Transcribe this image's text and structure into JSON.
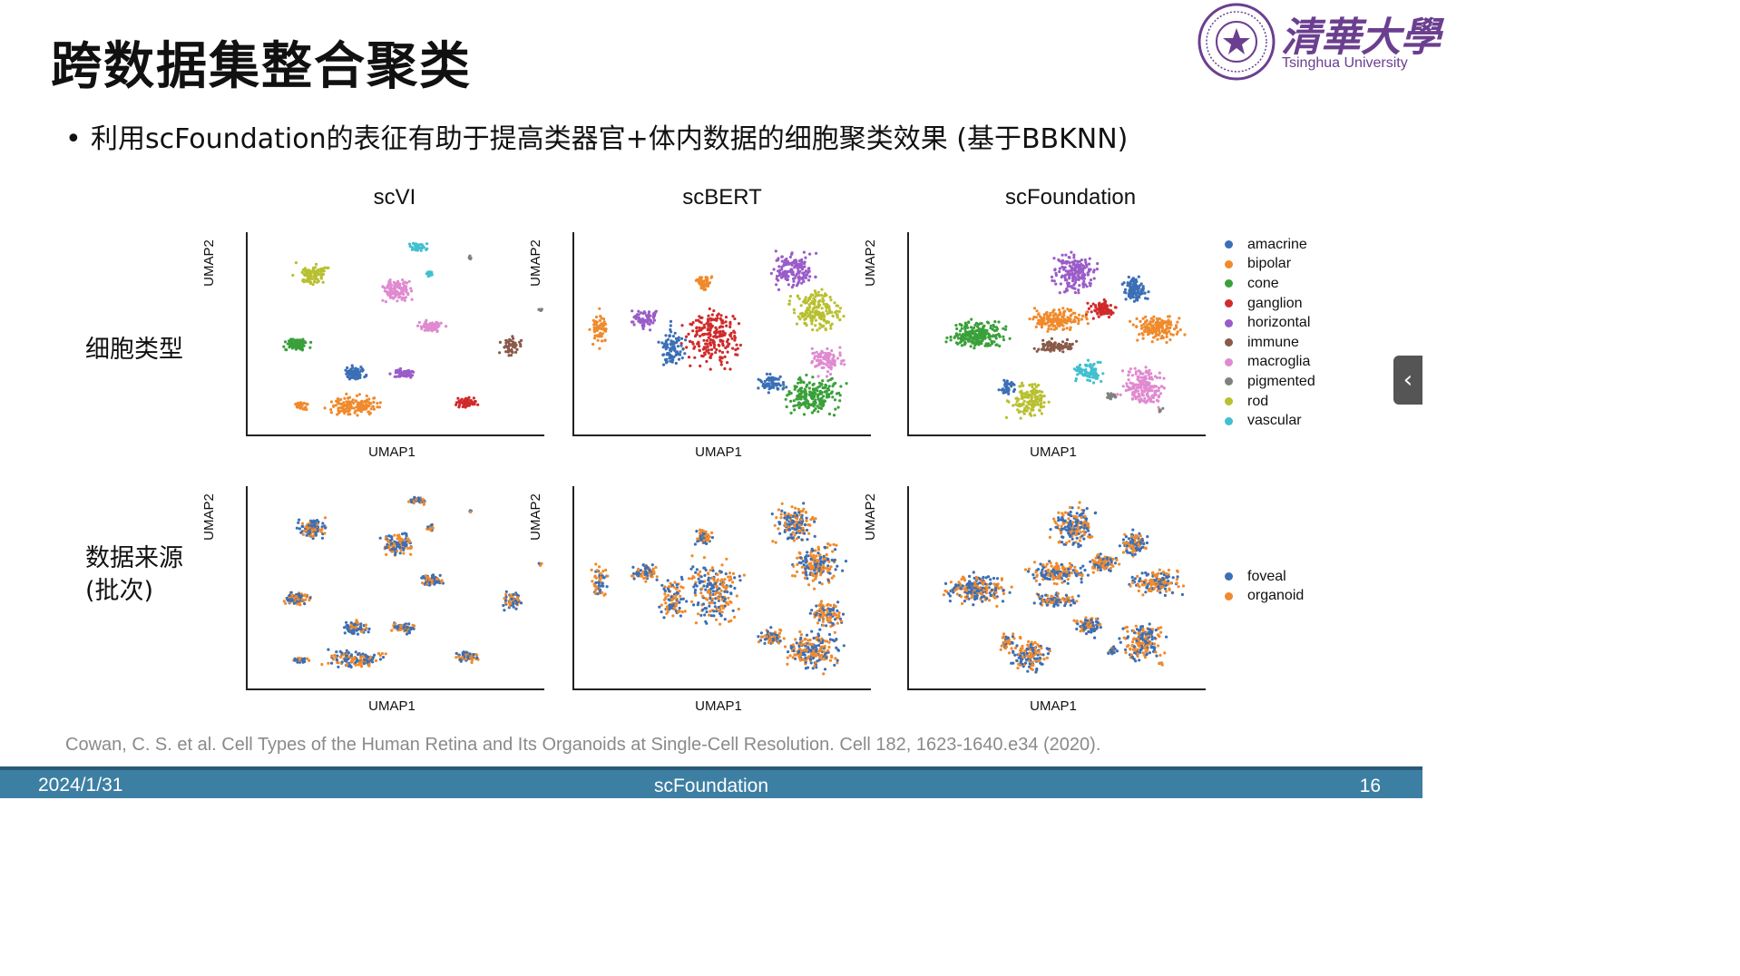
{
  "title": "跨数据集整合聚类",
  "logo": {
    "cn": "清華大學",
    "en": "Tsinghua University"
  },
  "bullet": "利用scFoundation的表征有助于提高类器官+体内数据的细胞聚类效果 (基于BBKNN)",
  "columns": [
    "scVI",
    "scBERT",
    "scFoundation"
  ],
  "rows": [
    {
      "label_line1": "细胞类型",
      "label_line2": ""
    },
    {
      "label_line1": "数据来源",
      "label_line2": "(批次)"
    }
  ],
  "axes": {
    "x": "UMAP1",
    "y": "UMAP2"
  },
  "legend_celltype": [
    {
      "label": "amacrine",
      "color": "#3b6fb6"
    },
    {
      "label": "bipolar",
      "color": "#f08a2c"
    },
    {
      "label": "cone",
      "color": "#3aa03a"
    },
    {
      "label": "ganglion",
      "color": "#d12a2a"
    },
    {
      "label": "horizontal",
      "color": "#9a5cc8"
    },
    {
      "label": "immune",
      "color": "#8a5a4a"
    },
    {
      "label": "macroglia",
      "color": "#e08ad0"
    },
    {
      "label": "pigmented",
      "color": "#808080"
    },
    {
      "label": "rod",
      "color": "#b8c030"
    },
    {
      "label": "vascular",
      "color": "#40c0d0"
    }
  ],
  "legend_batch": [
    {
      "label": "foveal",
      "color": "#3b6fb6"
    },
    {
      "label": "organoid",
      "color": "#f08a2c"
    }
  ],
  "citation": "Cowan, C. S. et al. Cell Types of the Human Retina and Its Organoids at Single-Cell Resolution. Cell 182, 1623-1640.e34 (2020).",
  "footer": {
    "date": "2024/1/31",
    "center": "scFoundation",
    "page": "16"
  },
  "side_tab_icon": "chevron-left-icon"
}
